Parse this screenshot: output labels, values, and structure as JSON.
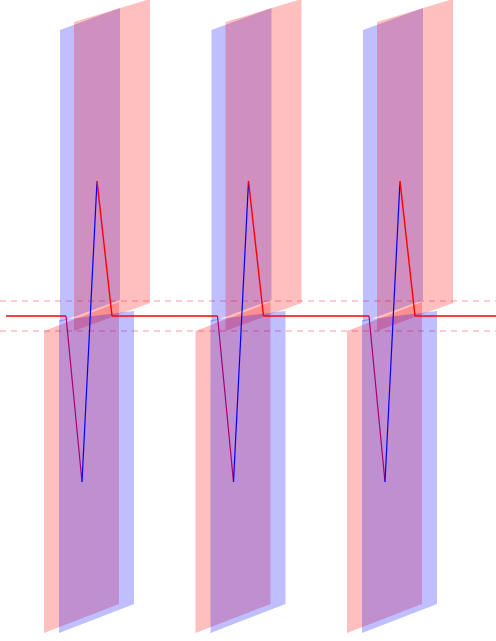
{
  "diagram": {
    "description_free": true,
    "repeat_count": 3,
    "colors": {
      "blue_panel": "#0000ff",
      "red_panel": "#ff0000",
      "waveform_red": "#ff0000",
      "waveform_blue": "#0000ff",
      "waveform_mixed": "#aa0077",
      "guide_dash": "#ff9aa0",
      "background": "#ffffff"
    },
    "panel_opacity": 0.25,
    "elements": [
      "blue-panel-upper",
      "red-panel-upper",
      "red-panel-lower",
      "blue-panel-lower",
      "waveform"
    ]
  }
}
